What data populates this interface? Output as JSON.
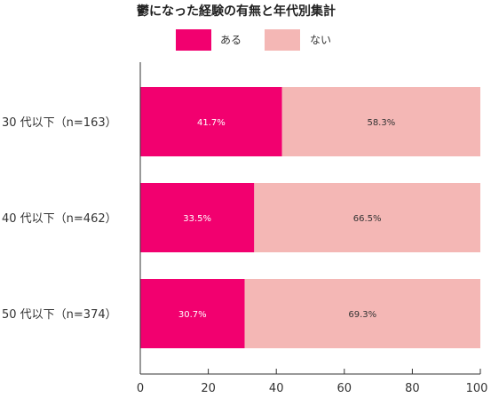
{
  "colors": {
    "yes": "#f2006f",
    "no": "#f4b7b5",
    "axis": "#333333",
    "label_on_yes": "#ffffff",
    "label_on_no": "#333333"
  },
  "chart_data": {
    "type": "bar",
    "orientation": "horizontal",
    "stacked": true,
    "title": "鬱になった経験の有無と年代別集計",
    "categories": [
      "30 代以下（n=163）",
      "40 代以下（n=462）",
      "50 代以下（n=374）"
    ],
    "series": [
      {
        "name": "ある",
        "values": [
          41.7,
          33.5,
          30.7
        ],
        "labels": [
          "41.7%",
          "33.5%",
          "30.7%"
        ]
      },
      {
        "name": "ない",
        "values": [
          58.3,
          66.5,
          69.3
        ],
        "labels": [
          "58.3%",
          "66.5%",
          "69.3%"
        ]
      }
    ],
    "xlim": [
      0,
      100
    ],
    "xticks": [
      "0",
      "20",
      "40",
      "60",
      "80",
      "100"
    ],
    "legend_position": "top",
    "grid": false
  }
}
